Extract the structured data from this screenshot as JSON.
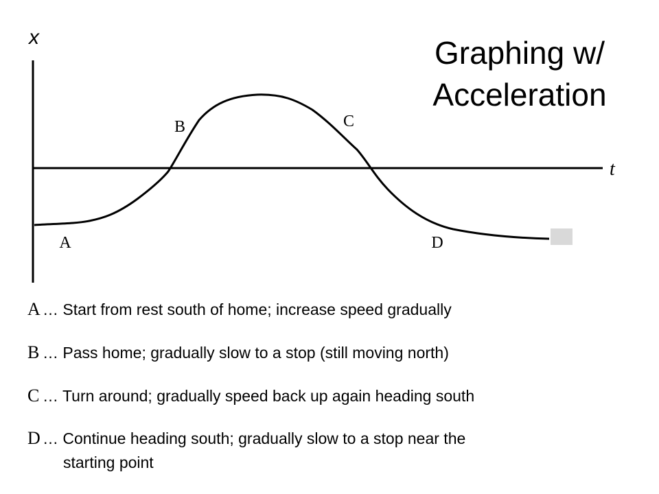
{
  "graph": {
    "y_axis_label": "x",
    "x_axis_label": "t",
    "labels": [
      "A",
      "B",
      "C",
      "D"
    ]
  },
  "title_lines": [
    "Graphing w/",
    "Acceleration"
  ],
  "items": [
    {
      "letter": "A",
      "lines": [
        "… Start from rest south of home; increase speed gradually"
      ]
    },
    {
      "letter": "B",
      "lines": [
        "… Pass home; gradually slow to a stop (still moving north)"
      ]
    },
    {
      "letter": "C",
      "lines": [
        "… Turn around; gradually speed back up again heading south"
      ]
    },
    {
      "letter": "D",
      "lines": [
        "… Continue heading south; gradually slow to a stop near the",
        "starting point"
      ]
    }
  ]
}
